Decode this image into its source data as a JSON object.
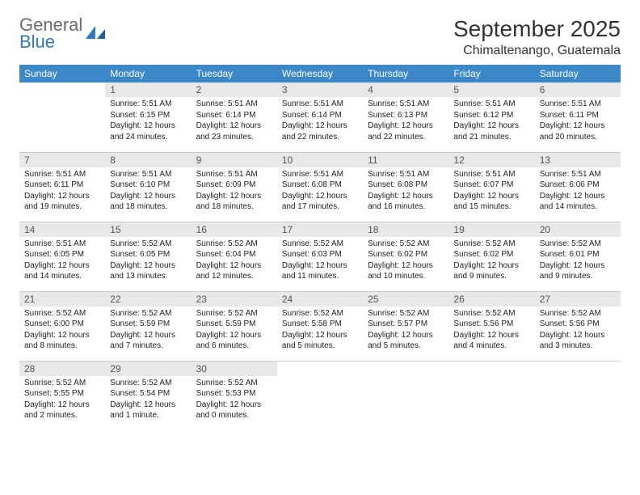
{
  "brand": {
    "general": "General",
    "blue": "Blue"
  },
  "title": "September 2025",
  "location": "Chimaltenango, Guatemala",
  "colors": {
    "header_bg": "#3b87c8",
    "header_text": "#ffffff",
    "daynum_bg": "#e8e8e8",
    "daynum_text": "#555555",
    "body_text": "#222222",
    "page_bg": "#ffffff",
    "rule": "#cccccc",
    "logo_gray": "#6b6b6b",
    "logo_blue": "#2f78c2"
  },
  "typography": {
    "title_fontsize": 28,
    "location_fontsize": 16,
    "weekday_fontsize": 12,
    "daynum_fontsize": 12,
    "cell_fontsize": 10
  },
  "weekdays": [
    "Sunday",
    "Monday",
    "Tuesday",
    "Wednesday",
    "Thursday",
    "Friday",
    "Saturday"
  ],
  "weeks": [
    [
      null,
      {
        "n": "1",
        "sr": "Sunrise: 5:51 AM",
        "ss": "Sunset: 6:15 PM",
        "d1": "Daylight: 12 hours",
        "d2": "and 24 minutes."
      },
      {
        "n": "2",
        "sr": "Sunrise: 5:51 AM",
        "ss": "Sunset: 6:14 PM",
        "d1": "Daylight: 12 hours",
        "d2": "and 23 minutes."
      },
      {
        "n": "3",
        "sr": "Sunrise: 5:51 AM",
        "ss": "Sunset: 6:14 PM",
        "d1": "Daylight: 12 hours",
        "d2": "and 22 minutes."
      },
      {
        "n": "4",
        "sr": "Sunrise: 5:51 AM",
        "ss": "Sunset: 6:13 PM",
        "d1": "Daylight: 12 hours",
        "d2": "and 22 minutes."
      },
      {
        "n": "5",
        "sr": "Sunrise: 5:51 AM",
        "ss": "Sunset: 6:12 PM",
        "d1": "Daylight: 12 hours",
        "d2": "and 21 minutes."
      },
      {
        "n": "6",
        "sr": "Sunrise: 5:51 AM",
        "ss": "Sunset: 6:11 PM",
        "d1": "Daylight: 12 hours",
        "d2": "and 20 minutes."
      }
    ],
    [
      {
        "n": "7",
        "sr": "Sunrise: 5:51 AM",
        "ss": "Sunset: 6:11 PM",
        "d1": "Daylight: 12 hours",
        "d2": "and 19 minutes."
      },
      {
        "n": "8",
        "sr": "Sunrise: 5:51 AM",
        "ss": "Sunset: 6:10 PM",
        "d1": "Daylight: 12 hours",
        "d2": "and 18 minutes."
      },
      {
        "n": "9",
        "sr": "Sunrise: 5:51 AM",
        "ss": "Sunset: 6:09 PM",
        "d1": "Daylight: 12 hours",
        "d2": "and 18 minutes."
      },
      {
        "n": "10",
        "sr": "Sunrise: 5:51 AM",
        "ss": "Sunset: 6:08 PM",
        "d1": "Daylight: 12 hours",
        "d2": "and 17 minutes."
      },
      {
        "n": "11",
        "sr": "Sunrise: 5:51 AM",
        "ss": "Sunset: 6:08 PM",
        "d1": "Daylight: 12 hours",
        "d2": "and 16 minutes."
      },
      {
        "n": "12",
        "sr": "Sunrise: 5:51 AM",
        "ss": "Sunset: 6:07 PM",
        "d1": "Daylight: 12 hours",
        "d2": "and 15 minutes."
      },
      {
        "n": "13",
        "sr": "Sunrise: 5:51 AM",
        "ss": "Sunset: 6:06 PM",
        "d1": "Daylight: 12 hours",
        "d2": "and 14 minutes."
      }
    ],
    [
      {
        "n": "14",
        "sr": "Sunrise: 5:51 AM",
        "ss": "Sunset: 6:05 PM",
        "d1": "Daylight: 12 hours",
        "d2": "and 14 minutes."
      },
      {
        "n": "15",
        "sr": "Sunrise: 5:52 AM",
        "ss": "Sunset: 6:05 PM",
        "d1": "Daylight: 12 hours",
        "d2": "and 13 minutes."
      },
      {
        "n": "16",
        "sr": "Sunrise: 5:52 AM",
        "ss": "Sunset: 6:04 PM",
        "d1": "Daylight: 12 hours",
        "d2": "and 12 minutes."
      },
      {
        "n": "17",
        "sr": "Sunrise: 5:52 AM",
        "ss": "Sunset: 6:03 PM",
        "d1": "Daylight: 12 hours",
        "d2": "and 11 minutes."
      },
      {
        "n": "18",
        "sr": "Sunrise: 5:52 AM",
        "ss": "Sunset: 6:02 PM",
        "d1": "Daylight: 12 hours",
        "d2": "and 10 minutes."
      },
      {
        "n": "19",
        "sr": "Sunrise: 5:52 AM",
        "ss": "Sunset: 6:02 PM",
        "d1": "Daylight: 12 hours",
        "d2": "and 9 minutes."
      },
      {
        "n": "20",
        "sr": "Sunrise: 5:52 AM",
        "ss": "Sunset: 6:01 PM",
        "d1": "Daylight: 12 hours",
        "d2": "and 9 minutes."
      }
    ],
    [
      {
        "n": "21",
        "sr": "Sunrise: 5:52 AM",
        "ss": "Sunset: 6:00 PM",
        "d1": "Daylight: 12 hours",
        "d2": "and 8 minutes."
      },
      {
        "n": "22",
        "sr": "Sunrise: 5:52 AM",
        "ss": "Sunset: 5:59 PM",
        "d1": "Daylight: 12 hours",
        "d2": "and 7 minutes."
      },
      {
        "n": "23",
        "sr": "Sunrise: 5:52 AM",
        "ss": "Sunset: 5:59 PM",
        "d1": "Daylight: 12 hours",
        "d2": "and 6 minutes."
      },
      {
        "n": "24",
        "sr": "Sunrise: 5:52 AM",
        "ss": "Sunset: 5:58 PM",
        "d1": "Daylight: 12 hours",
        "d2": "and 5 minutes."
      },
      {
        "n": "25",
        "sr": "Sunrise: 5:52 AM",
        "ss": "Sunset: 5:57 PM",
        "d1": "Daylight: 12 hours",
        "d2": "and 5 minutes."
      },
      {
        "n": "26",
        "sr": "Sunrise: 5:52 AM",
        "ss": "Sunset: 5:56 PM",
        "d1": "Daylight: 12 hours",
        "d2": "and 4 minutes."
      },
      {
        "n": "27",
        "sr": "Sunrise: 5:52 AM",
        "ss": "Sunset: 5:56 PM",
        "d1": "Daylight: 12 hours",
        "d2": "and 3 minutes."
      }
    ],
    [
      {
        "n": "28",
        "sr": "Sunrise: 5:52 AM",
        "ss": "Sunset: 5:55 PM",
        "d1": "Daylight: 12 hours",
        "d2": "and 2 minutes."
      },
      {
        "n": "29",
        "sr": "Sunrise: 5:52 AM",
        "ss": "Sunset: 5:54 PM",
        "d1": "Daylight: 12 hours",
        "d2": "and 1 minute."
      },
      {
        "n": "30",
        "sr": "Sunrise: 5:52 AM",
        "ss": "Sunset: 5:53 PM",
        "d1": "Daylight: 12 hours",
        "d2": "and 0 minutes."
      },
      null,
      null,
      null,
      null
    ]
  ]
}
